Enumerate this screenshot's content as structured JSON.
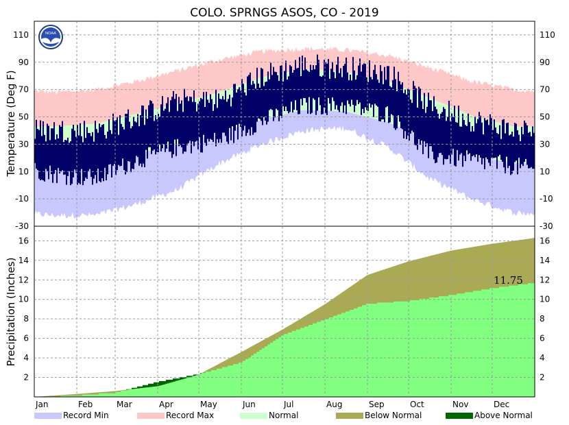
{
  "chart_data": {
    "type": "climate-summary",
    "title": "COLO. SPRNGS ASOS, CO - 2019",
    "logo_text": "NOAA",
    "months": [
      "Jan",
      "Feb",
      "Mar",
      "Apr",
      "May",
      "Jun",
      "Jul",
      "Aug",
      "Sep",
      "Oct",
      "Nov",
      "Dec"
    ],
    "temperature": {
      "ylabel": "Temperature (Deg F)",
      "ylim": [
        -30,
        120
      ],
      "ticks": [
        -30,
        -10,
        10,
        30,
        50,
        70,
        90,
        110
      ],
      "ticks_labeled": [
        -10,
        10,
        30,
        50,
        70,
        90,
        110
      ],
      "tick_label_extra": "-30",
      "monthly": [
        {
          "month": "Jan",
          "record_min": -22,
          "record_max": 68,
          "normal_low": 16,
          "normal_high": 43,
          "obs_low": 8,
          "obs_high": 40
        },
        {
          "month": "Feb",
          "record_min": -22,
          "record_max": 70,
          "normal_low": 18,
          "normal_high": 45,
          "obs_low": 5,
          "obs_high": 40
        },
        {
          "month": "Mar",
          "record_min": -14,
          "record_max": 76,
          "normal_low": 23,
          "normal_high": 52,
          "obs_low": 18,
          "obs_high": 50
        },
        {
          "month": "Apr",
          "record_min": -3,
          "record_max": 84,
          "normal_low": 30,
          "normal_high": 60,
          "obs_low": 28,
          "obs_high": 62
        },
        {
          "month": "May",
          "record_min": 16,
          "record_max": 92,
          "normal_low": 39,
          "normal_high": 68,
          "obs_low": 33,
          "obs_high": 62
        },
        {
          "month": "Jun",
          "record_min": 30,
          "record_max": 98,
          "normal_low": 48,
          "normal_high": 79,
          "obs_low": 47,
          "obs_high": 80
        },
        {
          "month": "Jul",
          "record_min": 40,
          "record_max": 100,
          "normal_low": 55,
          "normal_high": 85,
          "obs_low": 58,
          "obs_high": 88
        },
        {
          "month": "Aug",
          "record_min": 42,
          "record_max": 99,
          "normal_low": 54,
          "normal_high": 83,
          "obs_low": 58,
          "obs_high": 86
        },
        {
          "month": "Sep",
          "record_min": 28,
          "record_max": 95,
          "normal_low": 46,
          "normal_high": 76,
          "obs_low": 52,
          "obs_high": 82
        },
        {
          "month": "Oct",
          "record_min": 5,
          "record_max": 86,
          "normal_low": 34,
          "normal_high": 64,
          "obs_low": 22,
          "obs_high": 58
        },
        {
          "month": "Nov",
          "record_min": -10,
          "record_max": 76,
          "normal_low": 22,
          "normal_high": 51,
          "obs_low": 18,
          "obs_high": 48
        },
        {
          "month": "Dec",
          "record_min": -20,
          "record_max": 70,
          "normal_low": 16,
          "normal_high": 43,
          "obs_low": 14,
          "obs_high": 40
        }
      ]
    },
    "precipitation": {
      "ylabel": "Precipitation (Inches)",
      "ylim": [
        0,
        17.5
      ],
      "ticks": [
        2,
        4,
        6,
        8,
        10,
        12,
        14,
        16
      ],
      "annotation": "11.75",
      "cumulative_normal": [
        {
          "month": "Jan",
          "value": 0.3
        },
        {
          "month": "Feb",
          "value": 0.6
        },
        {
          "month": "Mar",
          "value": 1.1
        },
        {
          "month": "Apr",
          "value": 2.3
        },
        {
          "month": "May",
          "value": 4.6
        },
        {
          "month": "Jun",
          "value": 6.9
        },
        {
          "month": "Jul",
          "value": 9.5
        },
        {
          "month": "Aug",
          "value": 12.5
        },
        {
          "month": "Sep",
          "value": 13.9
        },
        {
          "month": "Oct",
          "value": 15.0
        },
        {
          "month": "Nov",
          "value": 15.7
        },
        {
          "month": "Dec",
          "value": 16.3
        }
      ],
      "cumulative_observed": [
        {
          "month": "Jan",
          "value": 0.2
        },
        {
          "month": "Feb",
          "value": 0.5
        },
        {
          "month": "Mar",
          "value": 1.6
        },
        {
          "month": "Apr",
          "value": 2.4
        },
        {
          "month": "May",
          "value": 3.6
        },
        {
          "month": "Jun",
          "value": 6.4
        },
        {
          "month": "Jul",
          "value": 8.0
        },
        {
          "month": "Aug",
          "value": 9.6
        },
        {
          "month": "Sep",
          "value": 9.9
        },
        {
          "month": "Oct",
          "value": 10.5
        },
        {
          "month": "Nov",
          "value": 11.2
        },
        {
          "month": "Dec",
          "value": 11.75
        }
      ]
    },
    "legend": [
      {
        "label": "Record Min",
        "color": "#c8c8ff"
      },
      {
        "label": "Record Max",
        "color": "#ffc8c8"
      },
      {
        "label": "Normal",
        "color": "#ccffcc"
      },
      {
        "label": "Below Normal",
        "color": "#aaaa55"
      },
      {
        "label": "Above Normal",
        "color": "#006600"
      }
    ],
    "colors": {
      "observed_temp": "#000066",
      "observed_precip": "#80ff80",
      "grid": "#999999"
    }
  }
}
